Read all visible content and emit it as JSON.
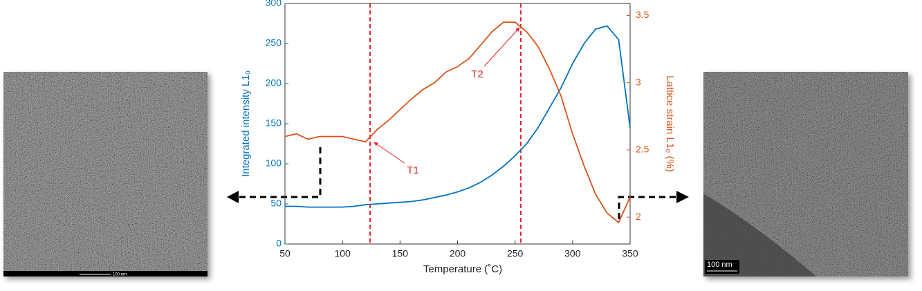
{
  "chart_data": {
    "type": "line",
    "xlabel": "Temperature (˚C)",
    "ylabel": "Integrated intensity L1₀",
    "y2label": "Lattice strain L1₀ (%)",
    "x": [
      50,
      60,
      70,
      80,
      90,
      100,
      110,
      120,
      130,
      140,
      150,
      160,
      170,
      180,
      190,
      200,
      210,
      220,
      230,
      240,
      250,
      260,
      270,
      280,
      290,
      300,
      310,
      320,
      330,
      340,
      350
    ],
    "series": [
      {
        "name": "Integrated intensity",
        "color": "#0072bd",
        "axis": "y",
        "values": [
          47,
          47,
          46,
          46,
          46,
          46,
          47,
          49,
          50,
          51,
          52,
          53,
          55,
          58,
          61,
          65,
          70,
          77,
          86,
          97,
          110,
          125,
          145,
          170,
          195,
          225,
          250,
          268,
          272,
          255,
          145
        ]
      },
      {
        "name": "Lattice strain",
        "color": "#d95319",
        "axis": "y2",
        "values": [
          2.6,
          2.62,
          2.58,
          2.6,
          2.6,
          2.6,
          2.58,
          2.56,
          2.65,
          2.72,
          2.8,
          2.88,
          2.95,
          3.0,
          3.08,
          3.12,
          3.18,
          3.28,
          3.38,
          3.45,
          3.45,
          3.38,
          3.27,
          3.1,
          2.9,
          2.62,
          2.38,
          2.17,
          2.03,
          1.96,
          2.15
        ]
      }
    ],
    "xlim": [
      50,
      350
    ],
    "xticks": [
      50,
      100,
      150,
      200,
      250,
      300,
      350
    ],
    "ylim": [
      0,
      300
    ],
    "yticks": [
      0,
      50,
      100,
      150,
      200,
      250,
      300
    ],
    "y2lim": [
      1.8,
      3.59
    ],
    "y2ticks": [
      2,
      2.5,
      3,
      3.5
    ],
    "vlines": [
      124,
      255
    ],
    "vline_color": "#e8202a",
    "annotations": [
      "T1",
      "T2"
    ]
  },
  "images": [
    {
      "scale_label": "100 nm"
    },
    {
      "scale_label": "100 nm"
    }
  ]
}
